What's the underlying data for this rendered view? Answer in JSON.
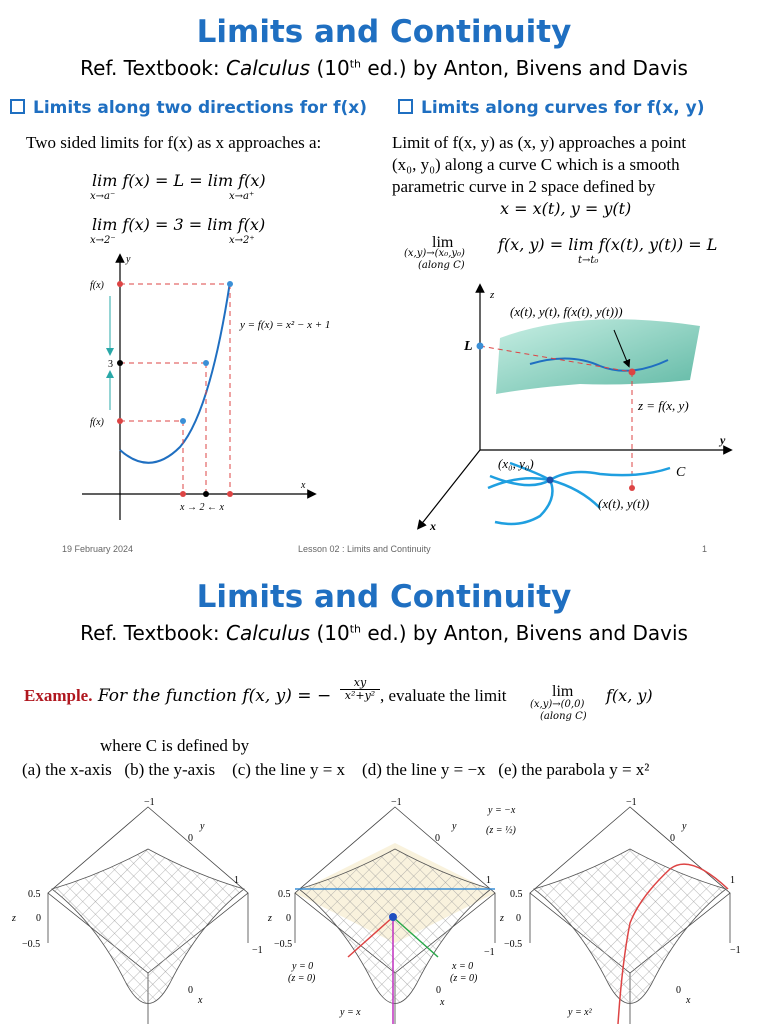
{
  "slide1": {
    "title": "Limits and Continuity",
    "ref_prefix": "Ref. Textbook: ",
    "ref_book": "Calculus",
    "ref_edition": " (10",
    "ref_sup": "th",
    "ref_suffix": " ed.) by Anton, Bivens and Davis",
    "left_heading": "Limits along two directions for f(x)",
    "left_text": "Two sided limits for f(x) as x approaches a:",
    "eq1": "lim f(x) = L = lim f(x)",
    "eq1_sub_left": "x→a⁻",
    "eq1_sub_right": "x→a⁺",
    "eq2": "lim f(x) = 3 = lim f(x)",
    "eq2_sub_left": "x→2⁻",
    "eq2_sub_right": "x→2⁺",
    "graph1": {
      "y_axis": "y",
      "x_axis": "x",
      "label_fx_top": "f(x)",
      "label_3": "3",
      "label_fx_bottom": "f(x)",
      "curve_label": "y = f(x) = x² − x + 1",
      "x_label": "x → 2 ← x"
    },
    "right_heading": "Limits along curves for f(x, y)",
    "right_text_1": "Limit of f(x, y) as (x, y) approaches a point",
    "right_text_2": "(x₀, y₀) along a curve C which is a smooth",
    "right_text_3": "parametric curve in 2 space defined by",
    "right_text_4": "x = x(t), y = y(t)",
    "eq3_lim_sub": "(x,y)→(x₀,y₀)",
    "eq3_along": "(along C)",
    "eq3_body": "f(x, y) = lim f(x(t), y(t)) = L",
    "eq3_sub2": "t→t₀",
    "graph2": {
      "z_axis": "z",
      "y_axis": "y",
      "x_axis": "x",
      "L": "L",
      "point_label": "(x(t), y(t), f(x(t), y(t)))",
      "surface_label": "z = f(x, y)",
      "origin_label": "(x₀, y₀)",
      "C_label": "C",
      "curve_point": "(x(t), y(t))"
    },
    "footer_date": "19 February 2024",
    "footer_lesson": "Lesson 02 : Limits and Continuity",
    "footer_page": "1"
  },
  "slide2": {
    "title": "Limits and Continuity",
    "ref_prefix": "Ref. Textbook: ",
    "ref_book": "Calculus",
    "ref_edition": " (10",
    "ref_sup": "th",
    "ref_suffix": " ed.) by Anton, Bivens and Davis",
    "example_label": "Example.",
    "example_text": " For the function f(x, y) = −",
    "frac_num": "xy",
    "frac_den": "x²+y²",
    "example_text2": ", evaluate the limit",
    "lim_sub": "(x,y)→(0,0)",
    "lim_along": "(along C)",
    "lim_body": "f(x, y)",
    "where": "where C is defined by",
    "cases": "(a) the x-axis   (b) the y-axis    (c) the line y = x    (d) the line y = −x   (e) the parabola y = x²",
    "plots": {
      "tick_neg1": "−1",
      "tick_0": "0",
      "tick_1": "1",
      "tick_05": "0.5",
      "tick_m05": "−0.5",
      "z": "z",
      "y": "y",
      "x": "x",
      "y_eq_negx": "y = −x",
      "z_half": "(z = ½)",
      "y0": "y = 0",
      "z0a": "(z = 0)",
      "x0": "x = 0",
      "z0b": "(z = 0)",
      "y_eq_x": "y = x",
      "y_eq_x2": "y = x²"
    }
  }
}
